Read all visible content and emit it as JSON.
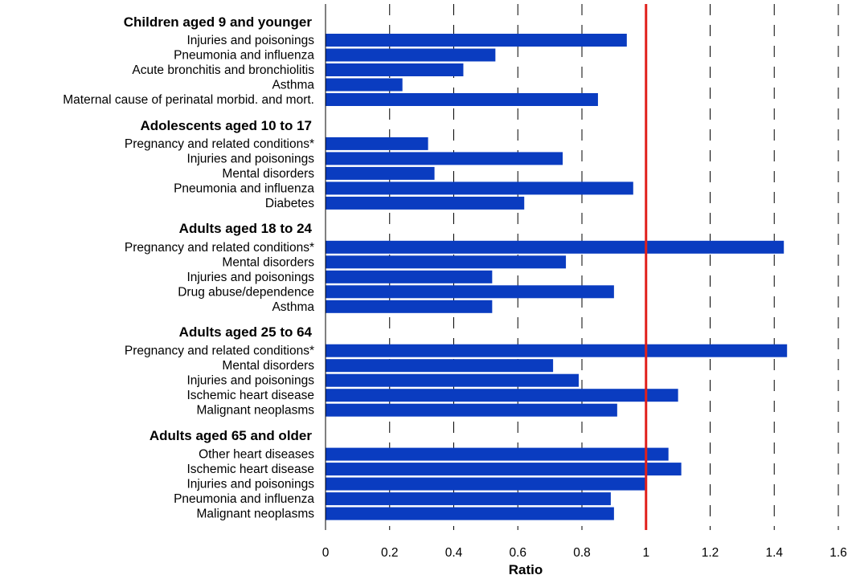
{
  "chart_data": {
    "type": "bar",
    "orientation": "horizontal",
    "xlabel": "Ratio",
    "xlim": [
      0,
      1.6
    ],
    "xticks": [
      0,
      0.2,
      0.4,
      0.6,
      0.8,
      1,
      1.2,
      1.4,
      1.6
    ],
    "xtick_labels": [
      "0",
      "0.2",
      "0.4",
      "0.6",
      "0.8",
      "1",
      "1.2",
      "1.4",
      "1.6"
    ],
    "grid": "vertical dashed",
    "reference_line": {
      "x": 1,
      "color": "#e0201c"
    },
    "bar_color": "#0a3cc0",
    "groups": [
      {
        "label": "Children aged 9 and younger",
        "categories": [
          "Injuries and poisonings",
          "Pneumonia and influenza",
          "Acute bronchitis and bronchiolitis",
          "Asthma",
          "Maternal cause of perinatal morbid. and mort."
        ],
        "values": [
          0.94,
          0.53,
          0.43,
          0.24,
          0.85
        ]
      },
      {
        "label": "Adolescents aged 10 to 17",
        "categories": [
          "Pregnancy and related conditions*",
          "Injuries and poisonings",
          "Mental disorders",
          "Pneumonia and influenza",
          "Diabetes"
        ],
        "values": [
          0.32,
          0.74,
          0.34,
          0.96,
          0.62
        ]
      },
      {
        "label": "Adults aged 18 to 24",
        "categories": [
          "Pregnancy and related conditions*",
          "Mental disorders",
          "Injuries and poisonings",
          "Drug abuse/dependence",
          "Asthma"
        ],
        "values": [
          1.43,
          0.75,
          0.52,
          0.9,
          0.52
        ]
      },
      {
        "label": "Adults aged 25 to 64",
        "categories": [
          "Pregnancy and related conditions*",
          "Mental disorders",
          "Injuries and poisonings",
          "Ischemic heart disease",
          "Malignant neoplasms"
        ],
        "values": [
          1.44,
          0.71,
          0.79,
          1.1,
          0.91
        ]
      },
      {
        "label": "Adults aged 65 and older",
        "categories": [
          "Other heart diseases",
          "Ischemic heart disease",
          "Injuries and poisonings",
          "Pneumonia and influenza",
          "Malignant neoplasms"
        ],
        "values": [
          1.07,
          1.11,
          1.0,
          0.89,
          0.9
        ]
      }
    ]
  }
}
